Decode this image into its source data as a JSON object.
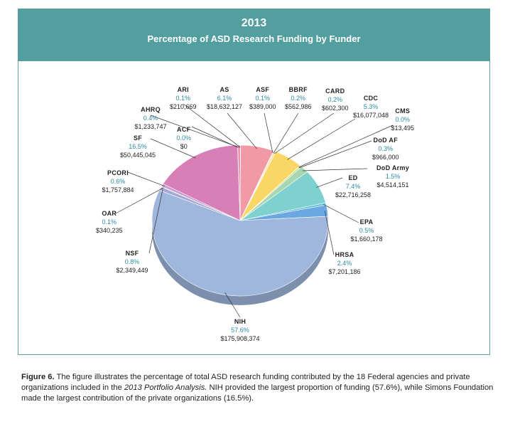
{
  "header": {
    "year": "2013",
    "subtitle": "Percentage of ASD Research Funding by Funder"
  },
  "chart_data": {
    "type": "pie",
    "title": "2013",
    "subtitle": "Percentage of ASD Research Funding by Funder",
    "slices": [
      {
        "name": "ARI",
        "pct": "0.1%",
        "amount": "$210,669",
        "value": 0.1,
        "color": "#e9869a"
      },
      {
        "name": "AS",
        "pct": "6.1%",
        "amount": "$18,632,127",
        "value": 6.1,
        "color": "#f19aa6"
      },
      {
        "name": "ASF",
        "pct": "0.1%",
        "amount": "$389,000",
        "value": 0.1,
        "color": "#ee9ba3"
      },
      {
        "name": "BBRF",
        "pct": "0.2%",
        "amount": "$562,986",
        "value": 0.2,
        "color": "#f5c98d"
      },
      {
        "name": "CARD",
        "pct": "0.2%",
        "amount": "$602,300",
        "value": 0.2,
        "color": "#f7d27a"
      },
      {
        "name": "CDC",
        "pct": "5.3%",
        "amount": "$16,077,048",
        "value": 5.3,
        "color": "#fad667"
      },
      {
        "name": "CMS",
        "pct": "0.0%",
        "amount": "$13,495",
        "value": 0.0,
        "color": "#d9d66a"
      },
      {
        "name": "DoD AF",
        "pct": "0.3%",
        "amount": "$966,000",
        "value": 0.3,
        "color": "#c5d880"
      },
      {
        "name": "DoD Army",
        "pct": "1.5%",
        "amount": "$4,514,151",
        "value": 1.5,
        "color": "#a8d6b0"
      },
      {
        "name": "ED",
        "pct": "7.4%",
        "amount": "$22,716,258",
        "value": 7.4,
        "color": "#7fd1cf"
      },
      {
        "name": "EPA",
        "pct": "0.5%",
        "amount": "$1,660,178",
        "value": 0.5,
        "color": "#6cc2e0"
      },
      {
        "name": "HRSA",
        "pct": "2.4%",
        "amount": "$7,201,186",
        "value": 2.4,
        "color": "#6aa7e3"
      },
      {
        "name": "NIH",
        "pct": "57.6%",
        "amount": "$175,908,374",
        "value": 57.6,
        "color": "#9fb7dc"
      },
      {
        "name": "NSF",
        "pct": "0.8%",
        "amount": "$2,349,449",
        "value": 0.8,
        "color": "#a6a7d6"
      },
      {
        "name": "OAR",
        "pct": "0.1%",
        "amount": "$340,235",
        "value": 0.1,
        "color": "#b7a3d2"
      },
      {
        "name": "PCORI",
        "pct": "0.6%",
        "amount": "$1,757,884",
        "value": 0.6,
        "color": "#c79ccf"
      },
      {
        "name": "SF",
        "pct": "16.5%",
        "amount": "$50,445,045",
        "value": 16.5,
        "color": "#d87fb8"
      },
      {
        "name": "ACF",
        "pct": "0.0%",
        "amount": "$0",
        "value": 0.0,
        "color": "#e082a6"
      },
      {
        "name": "AHRQ",
        "pct": "0.4%",
        "amount": "$1,233,747",
        "value": 0.4,
        "color": "#e47f9c"
      }
    ]
  },
  "caption": {
    "fig": "Figure 6.",
    "t1": " The figure illustrates the percentage of total ASD research funding contributed by the 18 Federal agencies and private organizations included in the ",
    "em": "2013 Portfolio Analysis.",
    "t2": " NIH provided the largest proportion of funding (57.6%), while Simons Foundation made the largest contribution of the private organizations (16.5%)."
  }
}
